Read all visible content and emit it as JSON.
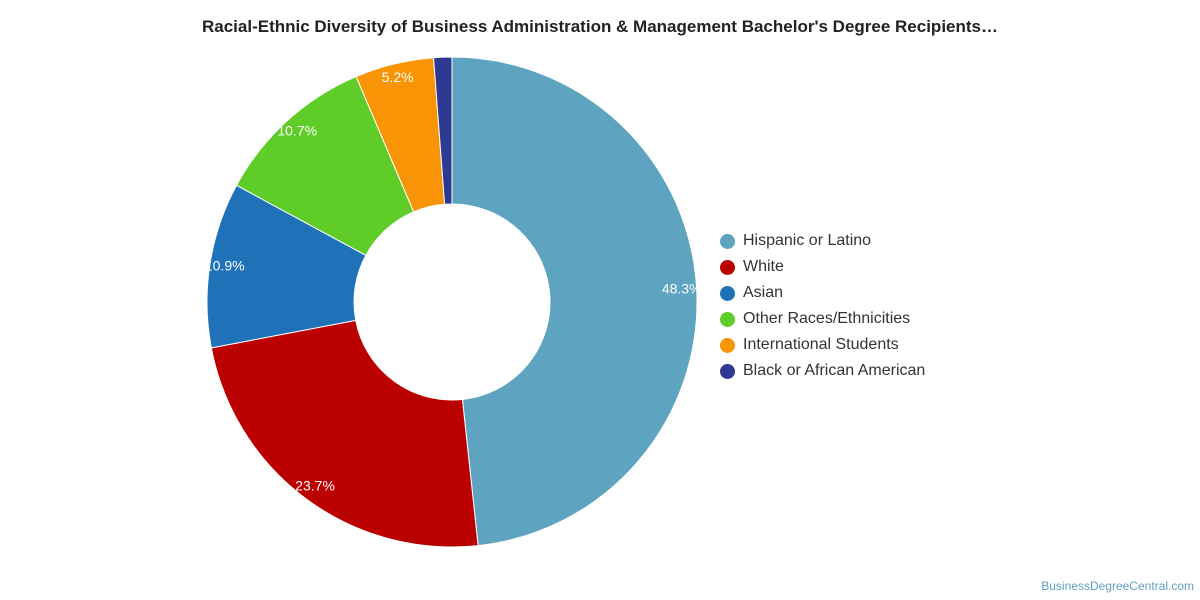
{
  "chart_data": {
    "type": "pie",
    "donut": true,
    "title": "Racial-Ethnic Diversity of Business Administration & Management Bachelor's Degree Recipients…",
    "series": [
      {
        "name": "Hispanic or Latino",
        "value": 48.3,
        "label": "48.3%",
        "color": "#5ea3c0"
      },
      {
        "name": "White",
        "value": 23.7,
        "label": "23.7%",
        "color": "#bb0000"
      },
      {
        "name": "Asian",
        "value": 10.9,
        "label": "10.9%",
        "color": "#1f72b8"
      },
      {
        "name": "Other Races/Ethnicities",
        "value": 10.7,
        "label": "10.7%",
        "color": "#5fcc27"
      },
      {
        "name": "International Students",
        "value": 5.2,
        "label": "5.2%",
        "color": "#f89406"
      },
      {
        "name": "Black or African American",
        "value": 1.2,
        "label": "",
        "color": "#2e3a92"
      }
    ],
    "legend_position": "right"
  },
  "credit": "BusinessDegreeCentral.com"
}
